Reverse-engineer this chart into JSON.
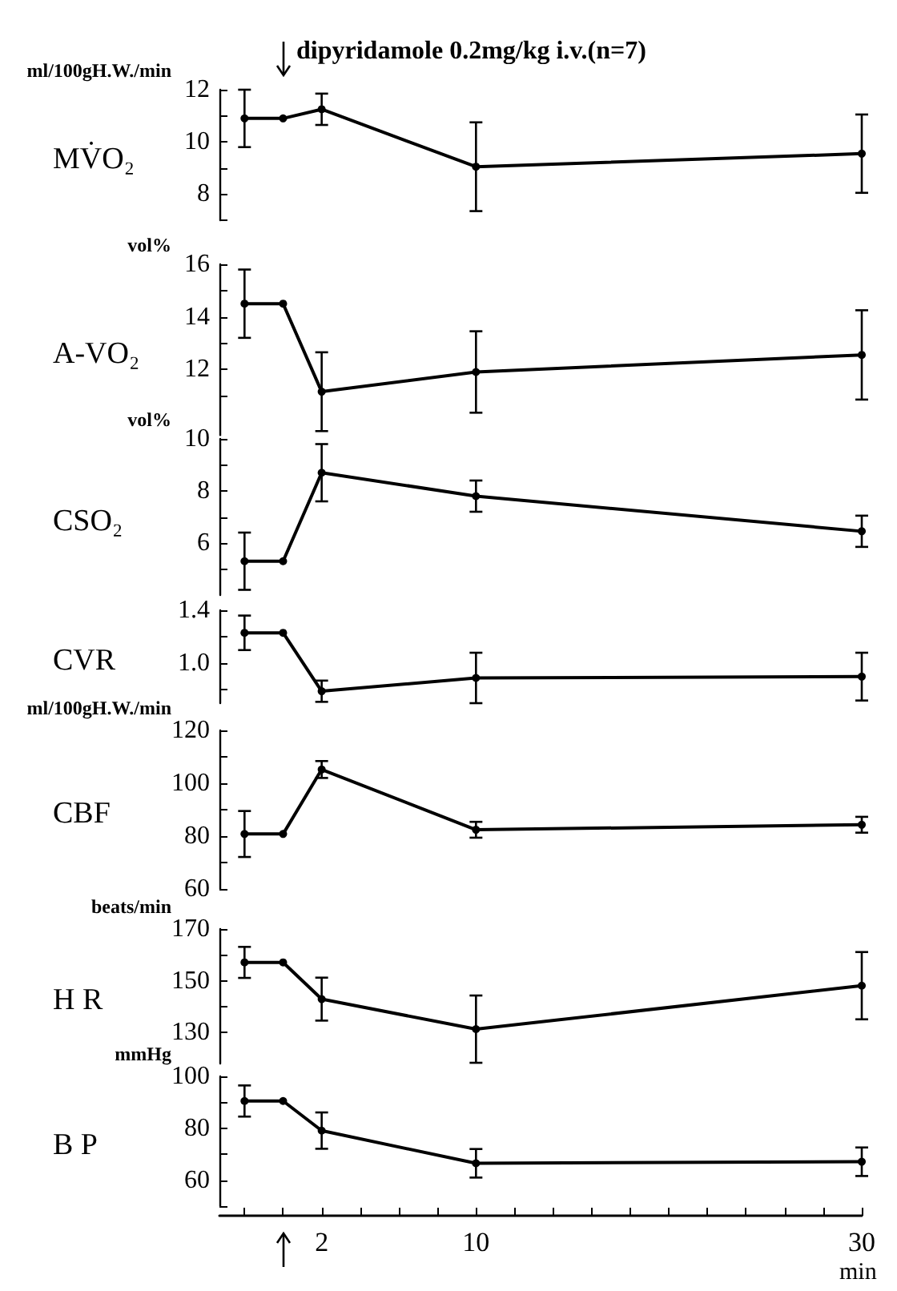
{
  "chart_data": [
    {
      "type": "line",
      "title": "MV̇O₂",
      "ylabel": "ml/100gH.W./min",
      "annotations": [
        "dipyridamole 0.2mg/kg i.v.(n=7)"
      ],
      "x": [
        -2,
        0,
        2,
        10,
        30
      ],
      "values": [
        10.9,
        10.9,
        11.25,
        9.05,
        9.55
      ],
      "errors": [
        1.1,
        null,
        0.6,
        1.7,
        1.5
      ],
      "color": "#000000",
      "marker": "circle",
      "xlim": [
        -3.3,
        30
      ],
      "ylim": [
        7,
        12
      ],
      "yticks": [
        {
          "value": 7,
          "label": null
        },
        8,
        {
          "value": 9,
          "label": null
        },
        10,
        {
          "value": 11,
          "label": null
        },
        12
      ],
      "tick_labels": "y"
    },
    {
      "type": "line",
      "title": "A-VO₂",
      "ylabel": "vol%",
      "x": [
        -2,
        0,
        2,
        10,
        30
      ],
      "values": [
        14.5,
        14.5,
        11.15,
        11.9,
        12.55
      ],
      "errors": [
        1.3,
        null,
        1.5,
        1.55,
        1.7
      ],
      "color": "#000000",
      "marker": "circle",
      "xlim": [
        -3.3,
        30
      ],
      "ylim": [
        9.5,
        16
      ],
      "yticks": [
        {
          "value": 11,
          "label": null
        },
        12,
        {
          "value": 13,
          "label": null
        },
        14,
        {
          "value": 15,
          "label": null
        },
        16
      ],
      "tick_labels": "y"
    },
    {
      "type": "line",
      "title": "CSO₂",
      "ylabel": "vol%",
      "x": [
        -2,
        0,
        2,
        10,
        30
      ],
      "values": [
        5.3,
        5.3,
        8.7,
        7.8,
        6.45
      ],
      "errors": [
        1.1,
        null,
        1.1,
        0.6,
        0.6
      ],
      "color": "#000000",
      "marker": "circle",
      "xlim": [
        -3.3,
        30
      ],
      "ylim": [
        4,
        10
      ],
      "yticks": [
        {
          "value": 5,
          "label": null
        },
        6,
        {
          "value": 7,
          "label": null
        },
        8,
        {
          "value": 9,
          "label": null
        },
        10
      ],
      "tick_labels": "y"
    },
    {
      "type": "line",
      "title": "CVR",
      "x": [
        -2,
        0,
        2,
        10,
        30
      ],
      "values": [
        1.23,
        1.23,
        0.79,
        0.89,
        0.9
      ],
      "errors": [
        0.13,
        null,
        0.08,
        0.19,
        0.18
      ],
      "color": "#000000",
      "marker": "circle",
      "xlim": [
        -3.3,
        30
      ],
      "ylim": [
        0.7,
        1.4
      ],
      "yticks": [
        {
          "value": 0.8,
          "label": null
        },
        {
          "value": 1,
          "label": "1.0"
        },
        {
          "value": 1.2,
          "label": null
        },
        1.4
      ],
      "tick_labels": "y"
    },
    {
      "type": "line",
      "title": "CBF",
      "ylabel": "ml/100gH.W./min",
      "x": [
        -2,
        0,
        2,
        10,
        30
      ],
      "values": [
        80.8,
        80.8,
        105.2,
        82.4,
        84.3
      ],
      "errors": [
        8.7,
        null,
        3.2,
        3,
        3
      ],
      "color": "#000000",
      "marker": "circle",
      "xlim": [
        -3.3,
        30
      ],
      "ylim": [
        60,
        120
      ],
      "yticks": [
        60,
        {
          "value": 70,
          "label": null
        },
        80,
        {
          "value": 90,
          "label": null
        },
        100,
        {
          "value": 110,
          "label": null
        },
        120
      ],
      "tick_labels": "y"
    },
    {
      "type": "line",
      "title": "H R",
      "ylabel": "beats/min",
      "x": [
        -2,
        0,
        2,
        10,
        30
      ],
      "values": [
        157.1,
        157.1,
        142.9,
        131.3,
        148.1
      ],
      "errors": [
        6,
        null,
        8.3,
        13,
        13
      ],
      "color": "#000000",
      "marker": "circle",
      "xlim": [
        -3.3,
        30
      ],
      "ylim": [
        118,
        170
      ],
      "yticks": [
        130,
        {
          "value": 140,
          "label": null
        },
        150,
        {
          "value": 160,
          "label": null
        },
        170
      ],
      "tick_labels": "y"
    },
    {
      "type": "line",
      "title": "B P",
      "ylabel": "mmHg",
      "xlabel": "min",
      "x": [
        -2,
        0,
        2,
        10,
        30
      ],
      "values": [
        90.5,
        90.5,
        79.1,
        66.5,
        67.1
      ],
      "errors": [
        6,
        null,
        7,
        5.5,
        5.5
      ],
      "color": "#000000",
      "marker": "circle",
      "xlim": [
        -3.3,
        30
      ],
      "xticks": [
        {
          "value": -2,
          "label": null
        },
        {
          "value": 0,
          "label": null
        },
        2,
        {
          "value": 4,
          "label": null
        },
        {
          "value": 6,
          "label": null
        },
        {
          "value": 8,
          "label": null
        },
        10,
        {
          "value": 12,
          "label": null
        },
        {
          "value": 14,
          "label": null
        },
        {
          "value": 16,
          "label": null
        },
        {
          "value": 18,
          "label": null
        },
        {
          "value": 20,
          "label": null
        },
        {
          "value": 22,
          "label": null
        },
        {
          "value": 24,
          "label": null
        },
        {
          "value": 26,
          "label": null
        },
        {
          "value": 28,
          "label": null
        },
        30
      ],
      "ylim": [
        50,
        100
      ],
      "yticks": [
        {
          "value": 50,
          "label": null
        },
        60,
        {
          "value": 70,
          "label": null
        },
        80,
        {
          "value": 90,
          "label": null
        },
        100
      ]
    }
  ]
}
